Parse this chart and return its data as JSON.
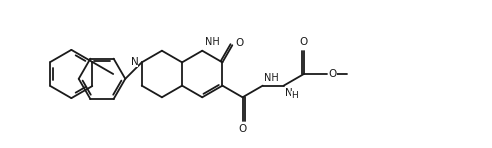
{
  "bg_color": "#ffffff",
  "line_color": "#1a1a1a",
  "line_width": 1.3,
  "font_size": 7.5,
  "xlim": [
    0,
    10.2
  ],
  "ylim": [
    -0.2,
    3.2
  ]
}
